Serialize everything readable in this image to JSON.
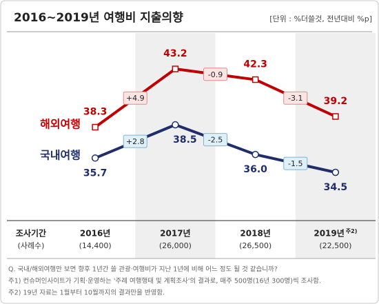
{
  "title": "2016~2019년 여행비 지출의향",
  "unit": "[단위 : %더쓸것, 전년대비 %p]",
  "chart_data": {
    "type": "line",
    "categories": [
      "2016년",
      "2017년",
      "2018년",
      "2019년"
    ],
    "category_note": "주2)",
    "series": [
      {
        "name": "해외여행",
        "color": "#c00000",
        "marker": "square",
        "values": [
          38.3,
          43.2,
          42.3,
          39.2
        ],
        "value_labels": [
          "38.3",
          "43.2",
          "42.3",
          "39.2"
        ],
        "changes": [
          4.9,
          -0.9,
          -3.1
        ],
        "change_labels": [
          "+4.9",
          "-0.9",
          "-3.1"
        ]
      },
      {
        "name": "국내여행",
        "color": "#1f2d6b",
        "marker": "circle",
        "values": [
          35.7,
          38.5,
          36.0,
          34.5
        ],
        "value_labels": [
          "35.7",
          "38.5",
          "36.0",
          "34.5"
        ],
        "changes": [
          2.8,
          -2.5,
          -1.5
        ],
        "change_labels": [
          "+2.8",
          "-2.5",
          "-1.5"
        ]
      }
    ]
  },
  "table": {
    "header": [
      "조사기간",
      "(사례수)"
    ],
    "sample_sizes": [
      "(14,400)",
      "(26,000)",
      "(26,500)",
      "(22,500)"
    ]
  },
  "footnotes": [
    "Q. 국내/해외여행만 보면 향후 1년간 쓸 관광·여행비가 지난 1년에 비해 어느 정도 될 것 같습니까?",
    "주1) 컨슈머인사이트가 기획·운영하는 '주례 여행행태 및 계획조사'의 결과로, 매주 500명(16년 300명)씩 조사함.",
    "주2) 19년 자료는 1월부터 10월까지의 결과만을 반영함."
  ]
}
